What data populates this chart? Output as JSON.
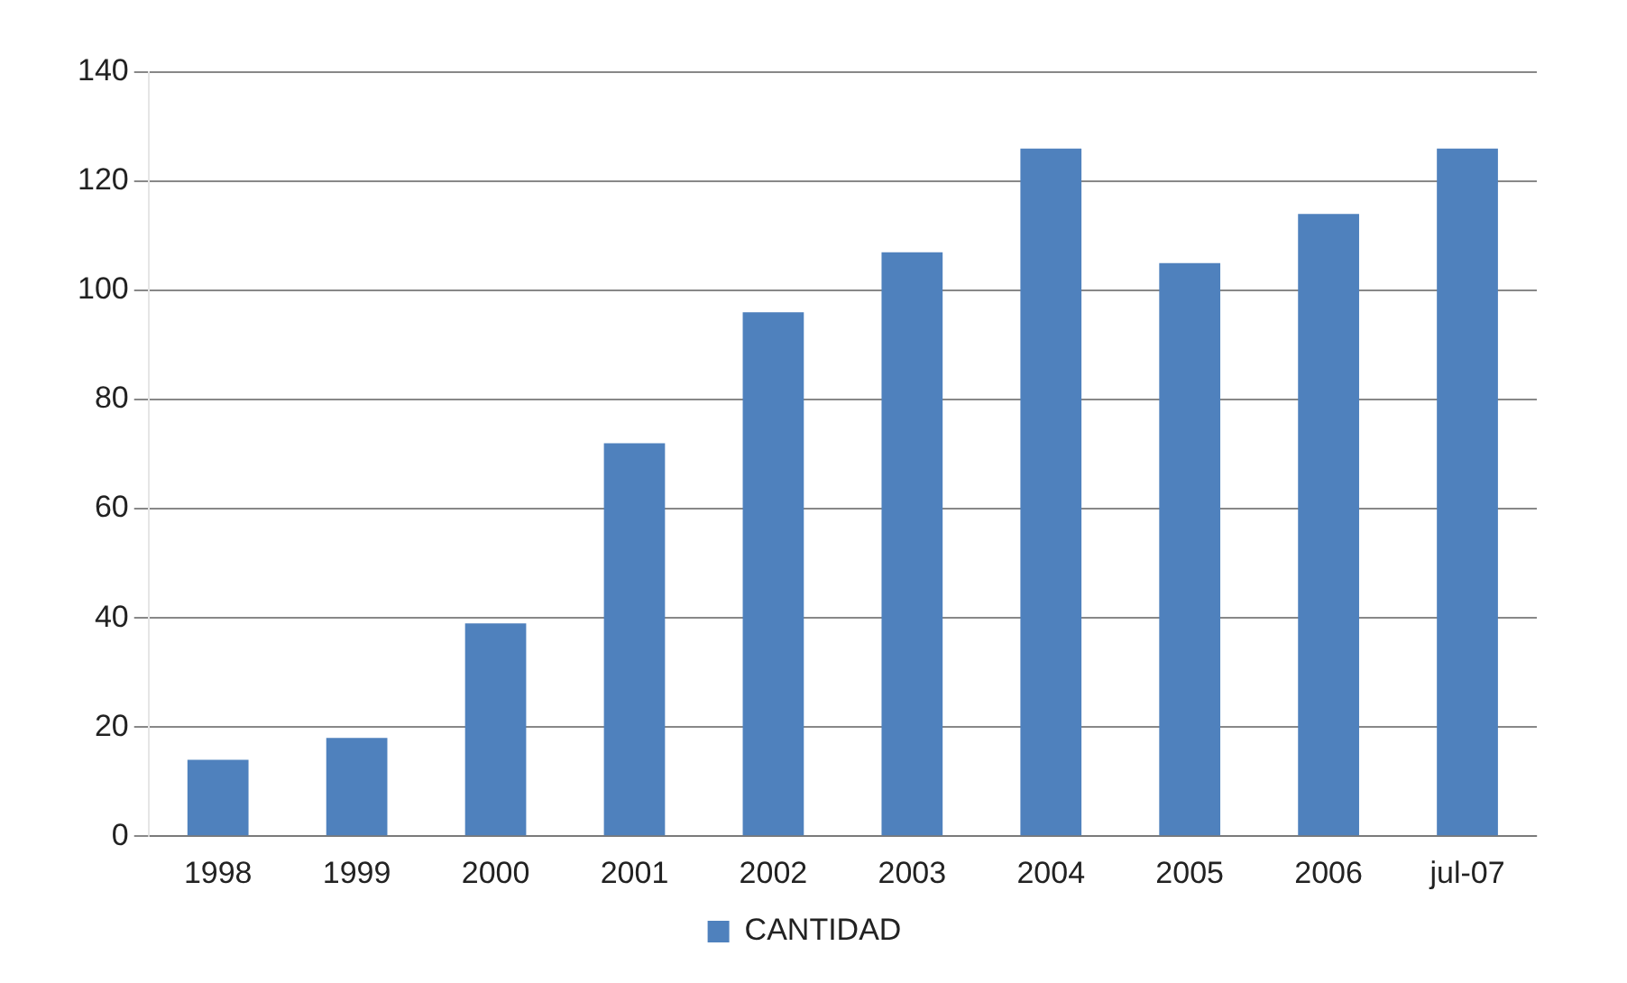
{
  "chart_data": {
    "type": "bar",
    "categories": [
      "1998",
      "1999",
      "2000",
      "2001",
      "2002",
      "2003",
      "2004",
      "2005",
      "2006",
      "jul-07"
    ],
    "series": [
      {
        "name": "CANTIDAD",
        "color": "#4f81bd",
        "values": [
          14,
          18,
          39,
          72,
          96,
          107,
          126,
          105,
          114,
          126
        ]
      }
    ],
    "ylim": [
      0,
      140
    ],
    "yticks": [
      0,
      20,
      40,
      60,
      80,
      100,
      120,
      140
    ],
    "grid": "y",
    "legend": "bottom"
  }
}
